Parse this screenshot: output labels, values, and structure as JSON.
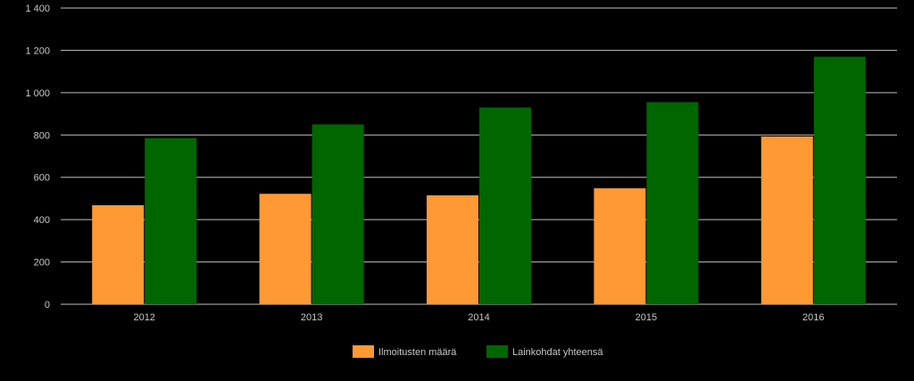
{
  "chart_data": {
    "type": "bar",
    "categories": [
      "2012",
      "2013",
      "2014",
      "2015",
      "2016"
    ],
    "series": [
      {
        "name": "Ilmoitusten määrä",
        "color": "#ff9933",
        "values": [
          468,
          522,
          515,
          548,
          793
        ]
      },
      {
        "name": "Lainkohdat yhteensä",
        "color": "#006600",
        "values": [
          785,
          850,
          930,
          955,
          1170
        ]
      }
    ],
    "yticks": [
      "0",
      "200",
      "400",
      "600",
      "800",
      "1 000",
      "1 200",
      "1 400"
    ],
    "ylim": [
      0,
      1400
    ],
    "grid": true,
    "legend_position": "bottom",
    "title": "",
    "xlabel": "",
    "ylabel": ""
  }
}
